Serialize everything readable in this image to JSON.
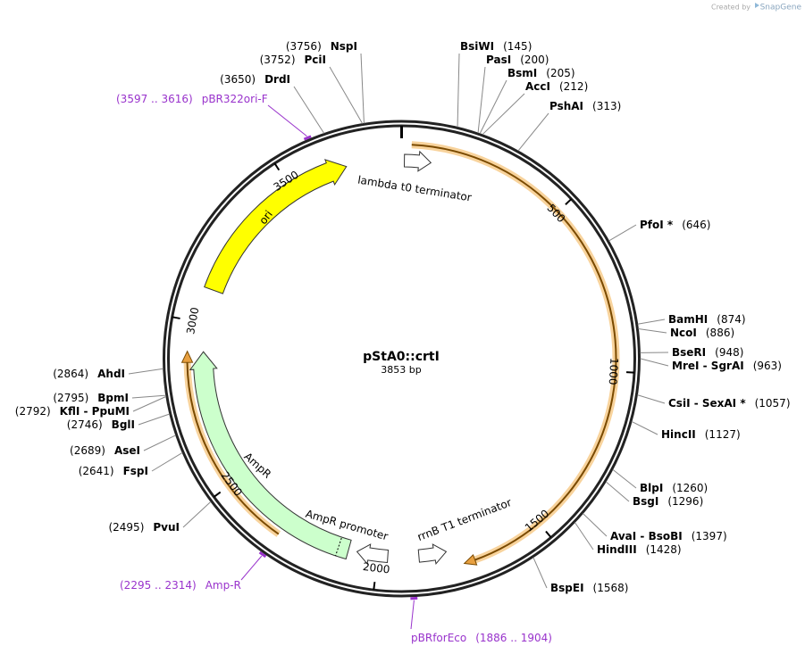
{
  "credit": {
    "prefix": "Created by",
    "brand": "SnapGene"
  },
  "map": {
    "name": "pStA0::crtI",
    "length": {
      "value": 3853,
      "label": "3853 bp"
    },
    "ruler": [
      500,
      1000,
      1500,
      2000,
      2500,
      3000,
      3500
    ]
  },
  "enzymes": [
    {
      "name": "BsiWI",
      "position": {
        "value": 145,
        "label": "(145)"
      }
    },
    {
      "name": "PasI",
      "position": {
        "value": 200,
        "label": "(200)"
      }
    },
    {
      "name": "BsmI",
      "position": {
        "value": 205,
        "label": "(205)"
      }
    },
    {
      "name": "AccI",
      "position": {
        "value": 212,
        "label": "(212)"
      }
    },
    {
      "name": "PshAI",
      "position": {
        "value": 313,
        "label": "(313)"
      }
    },
    {
      "name": "PfoI *",
      "position": {
        "value": 646,
        "label": "(646)"
      }
    },
    {
      "name": "BamHI",
      "position": {
        "value": 874,
        "label": "(874)"
      }
    },
    {
      "name": "NcoI",
      "position": {
        "value": 886,
        "label": "(886)"
      }
    },
    {
      "name": "BseRI",
      "position": {
        "value": 948,
        "label": "(948)"
      }
    },
    {
      "name": "MreI - SgrAI",
      "position": {
        "value": 963,
        "label": "(963)"
      }
    },
    {
      "name": "CsiI - SexAI *",
      "position": {
        "value": 1057,
        "label": "(1057)"
      }
    },
    {
      "name": "HincII",
      "position": {
        "value": 1127,
        "label": "(1127)"
      }
    },
    {
      "name": "BlpI",
      "position": {
        "value": 1260,
        "label": "(1260)"
      }
    },
    {
      "name": "BsgI",
      "position": {
        "value": 1296,
        "label": "(1296)"
      }
    },
    {
      "name": "AvaI - BsoBI",
      "position": {
        "value": 1397,
        "label": "(1397)"
      }
    },
    {
      "name": "HindIII",
      "position": {
        "value": 1428,
        "label": "(1428)"
      }
    },
    {
      "name": "BspEI",
      "position": {
        "value": 1568,
        "label": "(1568)"
      }
    },
    {
      "name": "NspI",
      "position": {
        "value": 3756,
        "label": "(3756)"
      }
    },
    {
      "name": "PciI",
      "position": {
        "value": 3752,
        "label": "(3752)"
      }
    },
    {
      "name": "DrdI",
      "position": {
        "value": 3650,
        "label": "(3650)"
      }
    },
    {
      "name": "AhdI",
      "position": {
        "value": 2864,
        "label": "(2864)"
      }
    },
    {
      "name": "BpmI",
      "position": {
        "value": 2795,
        "label": "(2795)"
      }
    },
    {
      "name": "KflI - PpuMI",
      "position": {
        "value": 2792,
        "label": "(2792)"
      }
    },
    {
      "name": "BglI",
      "position": {
        "value": 2746,
        "label": "(2746)"
      }
    },
    {
      "name": "AseI",
      "position": {
        "value": 2689,
        "label": "(2689)"
      }
    },
    {
      "name": "FspI",
      "position": {
        "value": 2641,
        "label": "(2641)"
      }
    },
    {
      "name": "PvuI",
      "position": {
        "value": 2495,
        "label": "(2495)"
      }
    }
  ],
  "primers": [
    {
      "name": "pBR322ori-F",
      "start": 3597,
      "end": 3616,
      "range_label": "(3597 .. 3616)"
    },
    {
      "name": "Amp-R",
      "start": 2295,
      "end": 2314,
      "range_label": "(2295 .. 2314)"
    },
    {
      "name": "pBRforEco",
      "start": 1886,
      "end": 1904,
      "range_label": "(1886 .. 1904)"
    }
  ],
  "features": [
    {
      "name": "ori"
    },
    {
      "name": "lambda t0 terminator"
    },
    {
      "name": "AmpR"
    },
    {
      "name": "AmpR promoter"
    },
    {
      "name": "rrnB T1 terminator"
    }
  ]
}
